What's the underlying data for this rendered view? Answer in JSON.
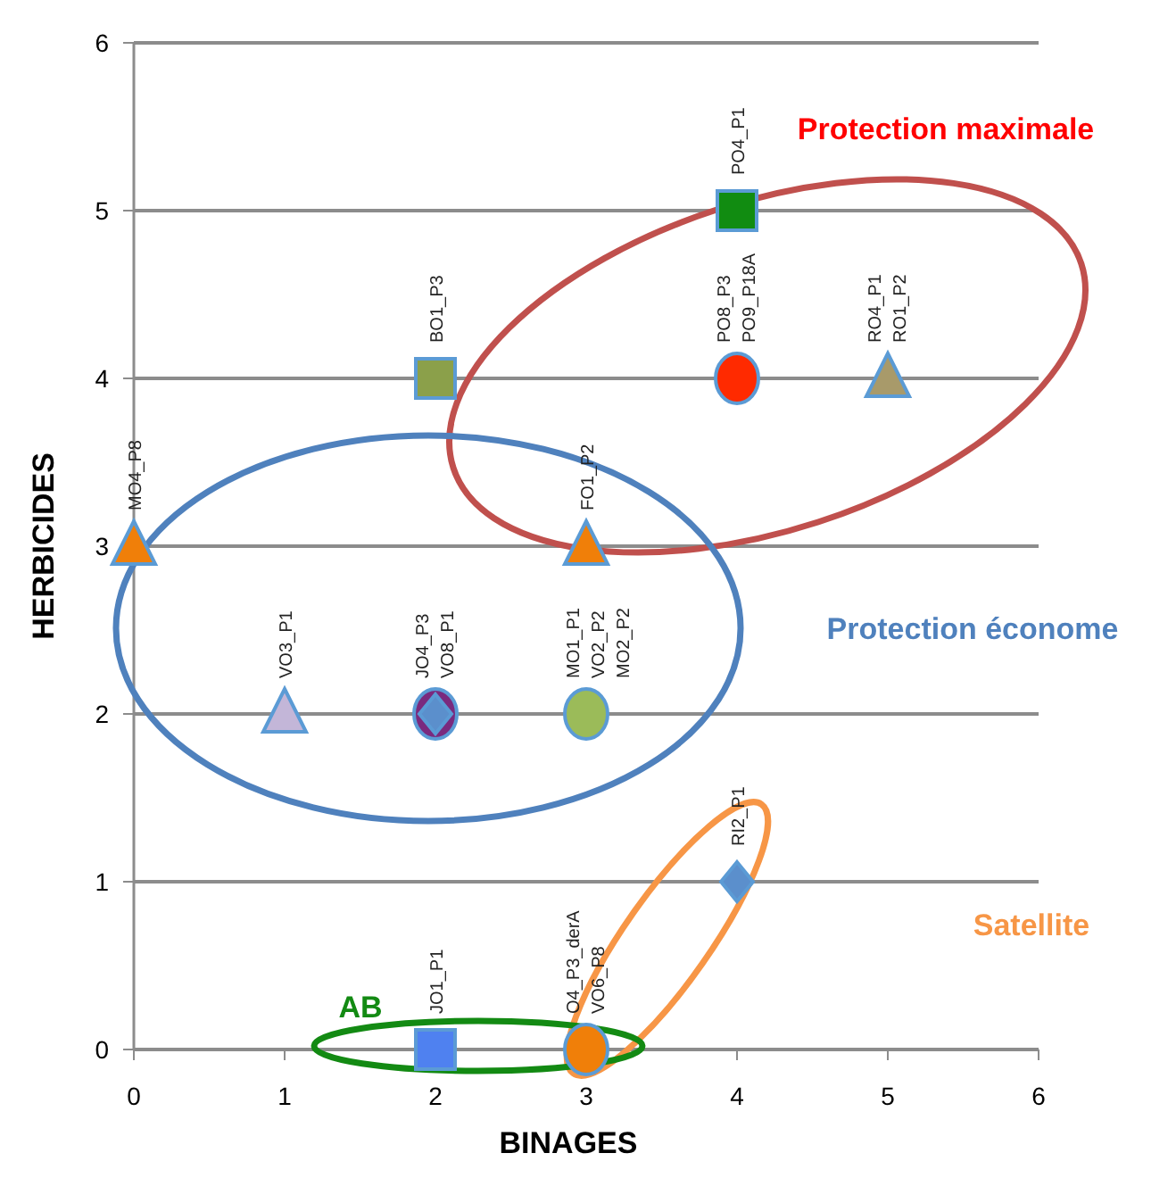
{
  "chart_data": {
    "type": "scatter",
    "xlabel": "BINAGES",
    "ylabel": "HERBICIDES",
    "xlim": [
      0,
      6
    ],
    "ylim": [
      0,
      6
    ],
    "xticks": [
      0,
      1,
      2,
      3,
      4,
      5,
      6
    ],
    "yticks": [
      0,
      1,
      2,
      3,
      4,
      5,
      6
    ],
    "grid": "y",
    "series": [
      {
        "x": [
          0
        ],
        "values": [
          3
        ],
        "color": "#f07f09",
        "marker": "triangle"
      },
      {
        "x": [
          1
        ],
        "values": [
          2
        ],
        "color": "#c3b6d8",
        "marker": "triangle"
      },
      {
        "x": [
          2
        ],
        "values": [
          2
        ],
        "color": "#7a2a7e",
        "marker": "circle"
      },
      {
        "x": [
          2
        ],
        "values": [
          2
        ],
        "color": "#5b8fcc",
        "marker": "diamond"
      },
      {
        "x": [
          3
        ],
        "values": [
          2
        ],
        "color": "#9bbb59",
        "marker": "circle"
      },
      {
        "x": [
          3
        ],
        "values": [
          3
        ],
        "color": "#f07f09",
        "marker": "triangle"
      },
      {
        "x": [
          2
        ],
        "values": [
          4
        ],
        "color": "#8ba04a",
        "marker": "square"
      },
      {
        "x": [
          4
        ],
        "values": [
          5
        ],
        "color": "#118c11",
        "marker": "square"
      },
      {
        "x": [
          4
        ],
        "values": [
          4
        ],
        "color": "#ff2a00",
        "marker": "circle"
      },
      {
        "x": [
          5
        ],
        "values": [
          4
        ],
        "color": "#a89a6a",
        "marker": "triangle"
      },
      {
        "x": [
          4
        ],
        "values": [
          1
        ],
        "color": "#5b8fcc",
        "marker": "diamond"
      },
      {
        "x": [
          2
        ],
        "values": [
          0
        ],
        "color": "#4f81f0",
        "marker": "square"
      },
      {
        "x": [
          3
        ],
        "values": [
          0
        ],
        "color": "#f07f09",
        "marker": "circle"
      }
    ],
    "annotations": [
      {
        "text": "MO4_P8",
        "x": 0,
        "y": 3
      },
      {
        "text": "VO3_P1",
        "x": 1,
        "y": 2
      },
      {
        "text": "JO4_P3",
        "x": 2,
        "y": 2
      },
      {
        "text": "VO8_P1",
        "x": 2,
        "y": 2
      },
      {
        "text": "MO1_P1",
        "x": 3,
        "y": 2
      },
      {
        "text": "VO2_P2",
        "x": 3,
        "y": 2
      },
      {
        "text": "MO2_P2",
        "x": 3,
        "y": 2
      },
      {
        "text": "FO1_P2",
        "x": 3,
        "y": 3
      },
      {
        "text": "BO1_P3",
        "x": 2,
        "y": 4
      },
      {
        "text": "PO4_P1",
        "x": 4,
        "y": 5
      },
      {
        "text": "PO8_P3",
        "x": 4,
        "y": 4
      },
      {
        "text": "PO9_P18A",
        "x": 4,
        "y": 4
      },
      {
        "text": "RO4_P1",
        "x": 5,
        "y": 4
      },
      {
        "text": "RO1_P2",
        "x": 5,
        "y": 4
      },
      {
        "text": "RI2_P1",
        "x": 4,
        "y": 1
      },
      {
        "text": "JO1_P1",
        "x": 2,
        "y": 0
      },
      {
        "text": "O4_P3_derA",
        "x": 3,
        "y": 0
      },
      {
        "text": "VO6_P8",
        "x": 3,
        "y": 0
      },
      "Protection maximale",
      "Protection économe",
      "Satellite",
      "AB"
    ]
  }
}
